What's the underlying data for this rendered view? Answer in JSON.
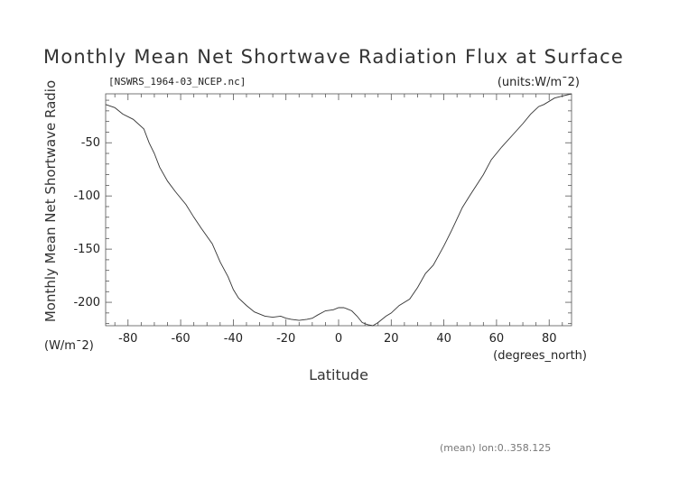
{
  "chart_data": {
    "type": "line",
    "title": "Monthly Mean Net Shortwave Radiation Flux at Surface",
    "file_label": "[NSWRS_1964-03_NCEP.nc]",
    "units_label": "(units:W/m¯2)",
    "xlabel": "Latitude",
    "xunits": "(degrees_north)",
    "ylabel": "Monthly Mean Net Shortwave Radio",
    "yunits": "(W/m¯2)",
    "footer": "(mean) lon:0..358.125",
    "xlim": [
      -88.5,
      88.5
    ],
    "ylim": [
      -222,
      -4
    ],
    "xticks": [
      -80,
      -60,
      -40,
      -20,
      0,
      20,
      40,
      60,
      80
    ],
    "yticks": [
      -50,
      -100,
      -150,
      -200
    ],
    "series": [
      {
        "x": [
          -88.5,
          -85,
          -82,
          -78,
          -74,
          -72,
          -70,
          -68,
          -65,
          -62,
          -58,
          -55,
          -52,
          -48,
          -45,
          -42,
          -40,
          -38,
          -35,
          -32,
          -28,
          -25,
          -22,
          -20,
          -18,
          -15,
          -12,
          -10,
          -8,
          -5,
          -2,
          0,
          2,
          3,
          5,
          7,
          9,
          11,
          13,
          15,
          18,
          20,
          23,
          27,
          30,
          33,
          36,
          40,
          43,
          47,
          50,
          55,
          58,
          62,
          66,
          70,
          73,
          76,
          78,
          82,
          85,
          88.5
        ],
        "y": [
          -14,
          -17,
          -23,
          -28,
          -37,
          -50,
          -60,
          -73,
          -86,
          -96,
          -108,
          -120,
          -131,
          -145,
          -162,
          -176,
          -188,
          -196,
          -203,
          -209,
          -213,
          -214,
          -213,
          -215,
          -216,
          -217,
          -216,
          -215,
          -212,
          -208,
          -207,
          -205,
          -205,
          -206,
          -208,
          -213,
          -219,
          -221,
          -222,
          -219,
          -213,
          -210,
          -203,
          -197,
          -186,
          -173,
          -165,
          -147,
          -132,
          -111,
          -99,
          -80,
          -66,
          -54,
          -43,
          -32,
          -23,
          -16,
          -14,
          -8,
          -6,
          -4
        ]
      }
    ]
  }
}
